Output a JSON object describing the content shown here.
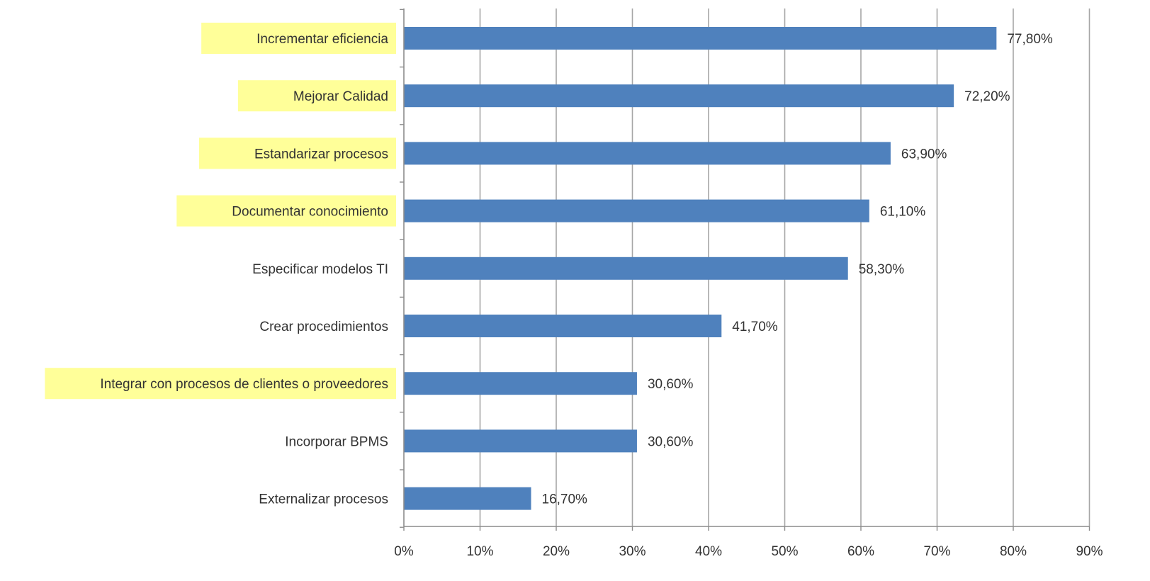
{
  "chart_data": {
    "type": "bar",
    "orientation": "horizontal",
    "categories": [
      "Incrementar eficiencia",
      "Mejorar Calidad",
      "Estandarizar procesos",
      "Documentar conocimiento",
      "Especificar modelos TI",
      "Crear procedimientos",
      "Integrar con procesos de clientes o proveedores",
      "Incorporar BPMS",
      "Externalizar procesos"
    ],
    "values": [
      77.8,
      72.2,
      63.9,
      61.1,
      58.3,
      41.7,
      30.6,
      30.6,
      16.7
    ],
    "data_labels": [
      "77,80%",
      "72,20%",
      "63,90%",
      "61,10%",
      "58,30%",
      "41,70%",
      "30,60%",
      "30,60%",
      "16,70%"
    ],
    "highlighted_categories": [
      "Incrementar eficiencia",
      "Mejorar Calidad",
      "Estandarizar procesos",
      "Documentar conocimiento",
      "Integrar con procesos de clientes o proveedores"
    ],
    "xlim": [
      0,
      90
    ],
    "xticks": [
      0,
      10,
      20,
      30,
      40,
      50,
      60,
      70,
      80,
      90
    ],
    "xtick_labels": [
      "0%",
      "10%",
      "20%",
      "30%",
      "40%",
      "50%",
      "60%",
      "70%",
      "80%",
      "90%"
    ],
    "title": "",
    "xlabel": "",
    "ylabel": "",
    "grid": "vertical",
    "colors": {
      "bar": "#4f81bd",
      "highlight": "#ffff99",
      "grid": "#a6a6a6",
      "axis": "#8c8c8c",
      "text": "#333333"
    }
  }
}
